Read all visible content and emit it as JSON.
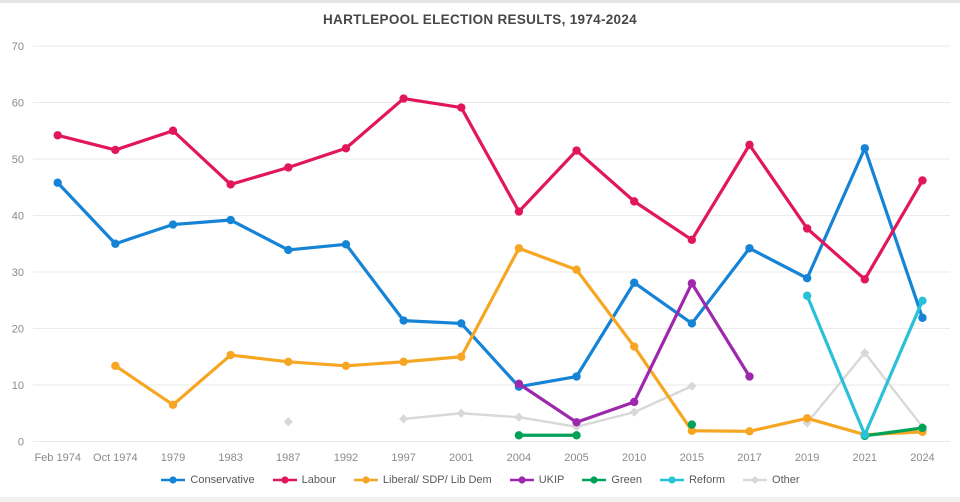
{
  "chart_data": {
    "type": "line",
    "title": "HARTLEPOOL ELECTION RESULTS, 1974-2024",
    "xlabel": "",
    "ylabel": "",
    "ylim": [
      0,
      70
    ],
    "yticks": [
      0,
      10,
      20,
      30,
      40,
      50,
      60,
      70
    ],
    "grid": true,
    "legend_position": "bottom",
    "categories": [
      "Feb 1974",
      "Oct 1974",
      "1979",
      "1983",
      "1987",
      "1992",
      "1997",
      "2001",
      "2004",
      "2005",
      "2010",
      "2015",
      "2017",
      "2019",
      "2021",
      "2024"
    ],
    "series": [
      {
        "name": "Other",
        "color": "#d8d8d8",
        "marker": "diamond",
        "segments": [
          [
            [
              4,
              3.5
            ]
          ],
          [
            [
              6,
              4.0
            ],
            [
              7,
              5.0
            ],
            [
              8,
              4.3
            ],
            [
              9,
              2.6
            ],
            [
              10,
              5.2
            ],
            [
              11,
              9.8
            ]
          ],
          [
            [
              13,
              3.3
            ],
            [
              14,
              15.7
            ],
            [
              15,
              2.6
            ]
          ]
        ]
      },
      {
        "name": "Conservative",
        "color": "#1583d6",
        "marker": "circle",
        "segments": [
          [
            [
              0,
              45.8
            ],
            [
              1,
              35.0
            ],
            [
              2,
              38.4
            ],
            [
              3,
              39.2
            ],
            [
              4,
              33.9
            ],
            [
              5,
              34.9
            ],
            [
              6,
              21.4
            ],
            [
              7,
              20.9
            ],
            [
              8,
              9.7
            ],
            [
              9,
              11.5
            ],
            [
              10,
              28.1
            ],
            [
              11,
              20.9
            ],
            [
              12,
              34.2
            ],
            [
              13,
              28.9
            ],
            [
              14,
              51.9
            ],
            [
              15,
              21.9
            ]
          ]
        ]
      },
      {
        "name": "Liberal/ SDP/ Lib Dem",
        "color": "#f6a623",
        "marker": "circle",
        "segments": [
          [
            [
              1,
              13.4
            ],
            [
              2,
              6.5
            ],
            [
              3,
              15.3
            ],
            [
              4,
              14.1
            ],
            [
              5,
              13.4
            ],
            [
              6,
              14.1
            ],
            [
              7,
              15.0
            ],
            [
              8,
              34.2
            ],
            [
              9,
              30.4
            ],
            [
              10,
              16.8
            ],
            [
              11,
              1.9
            ],
            [
              12,
              1.8
            ],
            [
              13,
              4.1
            ],
            [
              14,
              1.2
            ],
            [
              15,
              1.7
            ]
          ]
        ]
      },
      {
        "name": "Labour",
        "color": "#e2175b",
        "marker": "circle",
        "segments": [
          [
            [
              0,
              54.2
            ],
            [
              1,
              51.6
            ],
            [
              2,
              55.0
            ],
            [
              3,
              45.5
            ],
            [
              4,
              48.5
            ],
            [
              5,
              51.9
            ],
            [
              6,
              60.7
            ],
            [
              7,
              59.1
            ],
            [
              8,
              40.7
            ],
            [
              9,
              51.5
            ],
            [
              10,
              42.5
            ],
            [
              11,
              35.7
            ],
            [
              12,
              52.5
            ],
            [
              13,
              37.7
            ],
            [
              14,
              28.7
            ],
            [
              15,
              46.2
            ]
          ]
        ]
      },
      {
        "name": "UKIP",
        "color": "#9d27ad",
        "marker": "circle",
        "segments": [
          [
            [
              8,
              10.2
            ],
            [
              9,
              3.4
            ],
            [
              10,
              7.0
            ],
            [
              11,
              28.0
            ],
            [
              12,
              11.5
            ]
          ]
        ]
      },
      {
        "name": "Green",
        "color": "#00a259",
        "marker": "circle",
        "segments": [
          [
            [
              8,
              1.1
            ],
            [
              9,
              1.1
            ]
          ],
          [
            [
              11,
              3.0
            ]
          ],
          [
            [
              14,
              1.0
            ],
            [
              15,
              2.4
            ]
          ]
        ]
      },
      {
        "name": "Reform",
        "color": "#29c1d9",
        "marker": "circle",
        "segments": [
          [
            [
              13,
              25.8
            ],
            [
              14,
              1.2
            ],
            [
              15,
              24.9
            ]
          ]
        ]
      }
    ],
    "legend_order": [
      "Conservative",
      "Labour",
      "Liberal/ SDP/ Lib Dem",
      "UKIP",
      "Green",
      "Reform",
      "Other"
    ]
  },
  "style": {
    "gridline_color": "#eaeaea",
    "axis_label_color": "#8a8a8a",
    "legend_text_color": "#595959",
    "title_color": "#474747",
    "background": "#ffffff"
  }
}
